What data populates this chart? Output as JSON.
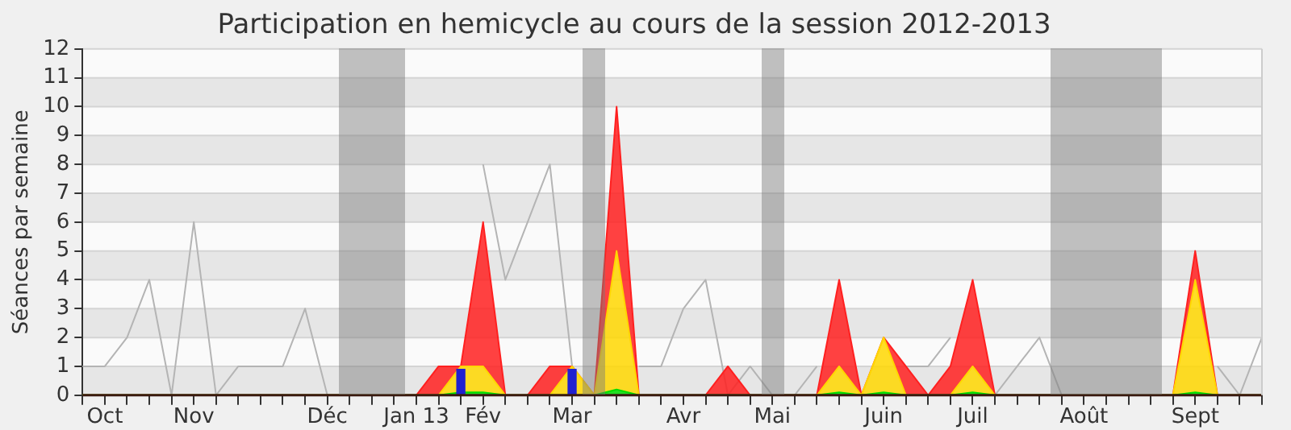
{
  "chart_data": {
    "type": "area",
    "title": "Participation en hemicycle au cours de la session 2012-2013",
    "ylabel": "Séances par semaine",
    "categories": [
      null,
      "Oct",
      null,
      null,
      null,
      "Nov",
      null,
      null,
      null,
      null,
      null,
      "Déc",
      null,
      null,
      null,
      "Jan 13",
      null,
      null,
      "Fév",
      null,
      null,
      null,
      "Mar",
      null,
      null,
      null,
      null,
      "Avr",
      null,
      null,
      null,
      "Mai",
      null,
      null,
      null,
      null,
      "Juin",
      null,
      null,
      null,
      "Juil",
      null,
      null,
      null,
      null,
      "Août",
      null,
      null,
      null,
      null,
      "Sept",
      null,
      null,
      null
    ],
    "ylim": [
      0,
      12
    ],
    "yticks": [
      0,
      1,
      2,
      3,
      4,
      5,
      6,
      7,
      8,
      9,
      10,
      11,
      12
    ],
    "grid": "y",
    "stacked": true,
    "legend": false,
    "marker": "none",
    "series": [
      {
        "color": "#00dd00",
        "values": [
          0,
          0,
          0,
          0,
          0,
          0,
          0,
          0,
          0,
          0,
          0,
          0,
          0,
          0,
          0,
          0,
          0,
          0.1,
          0.1,
          0,
          0,
          0,
          0,
          0,
          0.2,
          0,
          0,
          0,
          0,
          0,
          0,
          0,
          0,
          0,
          0.1,
          0,
          0.1,
          0,
          0,
          0,
          0.1,
          0,
          0,
          0,
          0,
          0,
          0,
          0,
          0,
          0,
          0.1,
          0,
          0,
          0
        ]
      },
      {
        "color": "#ffd700",
        "values": [
          0,
          0,
          0,
          0,
          0,
          0,
          0,
          0,
          0,
          0,
          0,
          0,
          0,
          0,
          0,
          0,
          0,
          0.9,
          0.9,
          0,
          0,
          0,
          1,
          0,
          4.8,
          0,
          0,
          0,
          0,
          0,
          0,
          0,
          0,
          0,
          0.9,
          0,
          1.9,
          0,
          0,
          0,
          0.9,
          0,
          0,
          0,
          0,
          0,
          0,
          0,
          0,
          0,
          3.9,
          0,
          0,
          0
        ]
      },
      {
        "color": "#ff2020",
        "values": [
          0,
          0,
          0,
          0,
          0,
          0,
          0,
          0,
          0,
          0,
          0,
          0,
          0,
          0,
          0,
          0,
          1,
          0,
          5,
          0,
          0,
          1,
          0,
          0,
          5,
          0,
          0,
          0,
          0,
          1,
          0,
          0,
          0,
          0,
          3,
          0,
          0,
          1,
          0,
          1,
          3,
          0,
          0,
          0,
          0,
          0,
          0,
          0,
          0,
          0,
          1,
          0,
          0,
          0
        ]
      },
      {
        "type": "line",
        "color": "#b4b4b4",
        "values": [
          1,
          1,
          2,
          4,
          0,
          6,
          0,
          1,
          1,
          1,
          3,
          0,
          null,
          null,
          null,
          null,
          null,
          null,
          8,
          4,
          6,
          8,
          1,
          null,
          null,
          1,
          1,
          3,
          4,
          0,
          1,
          0,
          0,
          1,
          null,
          null,
          null,
          1,
          1,
          2,
          null,
          0,
          1,
          2,
          0,
          null,
          null,
          null,
          null,
          null,
          null,
          1,
          0,
          2
        ]
      },
      {
        "type": "bar",
        "color": "#2020d0",
        "values": [
          null,
          null,
          null,
          null,
          null,
          null,
          null,
          null,
          null,
          null,
          null,
          null,
          null,
          null,
          null,
          null,
          null,
          0.9,
          null,
          null,
          null,
          null,
          0.9,
          null,
          null,
          null,
          null,
          null,
          null,
          null,
          null,
          null,
          null,
          null,
          null,
          null,
          null,
          null,
          null,
          null,
          null,
          null,
          null,
          null,
          null,
          null,
          null,
          null,
          null,
          null,
          null,
          null,
          null,
          null
        ]
      }
    ]
  }
}
